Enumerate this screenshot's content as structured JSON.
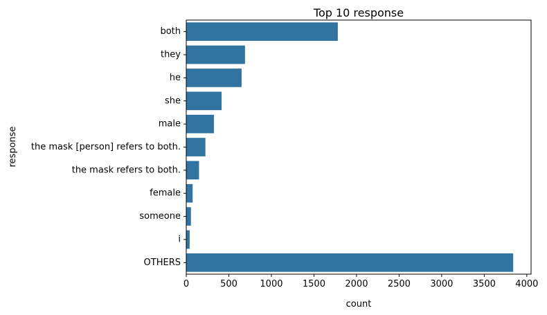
{
  "chart_data": {
    "type": "bar",
    "orientation": "horizontal",
    "title": "Top 10 response",
    "xlabel": "count",
    "ylabel": "response",
    "categories": [
      "both",
      "they",
      "he",
      "she",
      "male",
      "the mask [person] refers to both.",
      "the mask refers to both.",
      "female",
      "someone",
      "i",
      "OTHERS"
    ],
    "values": [
      1780,
      690,
      650,
      415,
      325,
      225,
      150,
      75,
      55,
      40,
      3840
    ],
    "xlim": [
      0,
      4050
    ],
    "xticks": [
      0,
      500,
      1000,
      1500,
      2000,
      2500,
      3000,
      3500,
      4000
    ],
    "grid": false,
    "bar_color": "#3274a1"
  }
}
